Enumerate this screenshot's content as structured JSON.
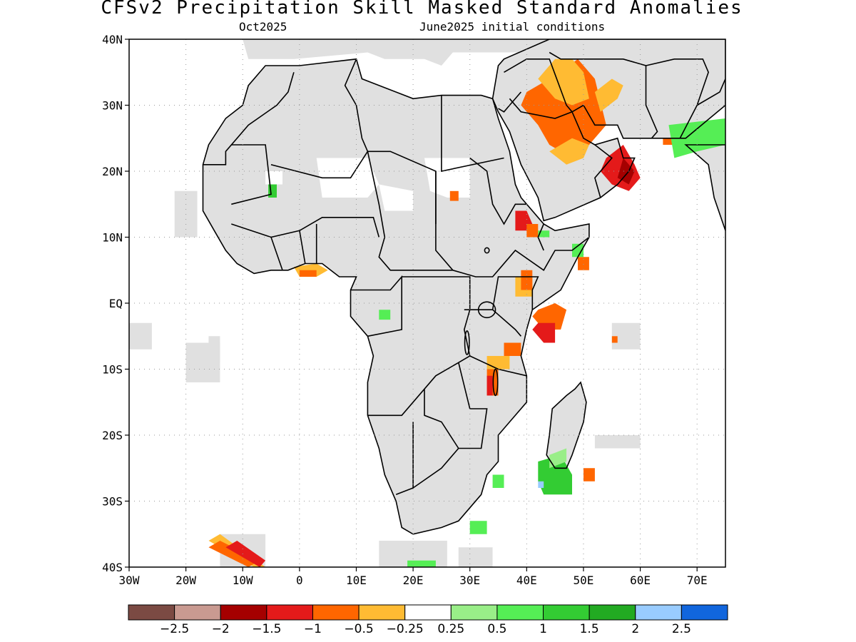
{
  "title": "CFSv2 Precipitation Skill Masked Standard Anomalies",
  "subtitle_left": "Oct2025",
  "subtitle_right": "June2025 initial conditions",
  "map": {
    "lon_range": [
      -30,
      75
    ],
    "lat_range": [
      -40,
      40
    ],
    "land_color": "#e0e0e0",
    "border_color": "#000000",
    "grid_style": "dotted",
    "lat_labels": [
      {
        "lat": 40,
        "text": "40N"
      },
      {
        "lat": 30,
        "text": "30N"
      },
      {
        "lat": 20,
        "text": "20N"
      },
      {
        "lat": 10,
        "text": "10N"
      },
      {
        "lat": 0,
        "text": "EQ"
      },
      {
        "lat": -10,
        "text": "10S"
      },
      {
        "lat": -20,
        "text": "20S"
      },
      {
        "lat": -30,
        "text": "30S"
      },
      {
        "lat": -40,
        "text": "40S"
      }
    ],
    "lon_labels": [
      {
        "lon": -30,
        "text": "30W"
      },
      {
        "lon": -20,
        "text": "20W"
      },
      {
        "lon": -10,
        "text": "10W"
      },
      {
        "lon": 0,
        "text": "0"
      },
      {
        "lon": 10,
        "text": "10E"
      },
      {
        "lon": 20,
        "text": "20E"
      },
      {
        "lon": 30,
        "text": "30E"
      },
      {
        "lon": 40,
        "text": "40E"
      },
      {
        "lon": 50,
        "text": "50E"
      },
      {
        "lon": 60,
        "text": "60E"
      },
      {
        "lon": 70,
        "text": "70E"
      }
    ],
    "anomaly_regions": [
      {
        "name": "arabia-north",
        "color": "#ff6600",
        "coords": [
          [
            40,
            32
          ],
          [
            46,
            35
          ],
          [
            49,
            37
          ],
          [
            52,
            34
          ],
          [
            54,
            27
          ],
          [
            51,
            24
          ],
          [
            48,
            22
          ],
          [
            44,
            24
          ],
          [
            42,
            27
          ],
          [
            39,
            30
          ]
        ]
      },
      {
        "name": "arabia-north-light",
        "color": "#ffbb33",
        "coords": [
          [
            42,
            34
          ],
          [
            45,
            37
          ],
          [
            48,
            37
          ],
          [
            50,
            35
          ],
          [
            51,
            31
          ],
          [
            48,
            30
          ],
          [
            45,
            31
          ]
        ]
      },
      {
        "name": "arabia-south-light",
        "color": "#ffbb33",
        "coords": [
          [
            44,
            23
          ],
          [
            47,
            21
          ],
          [
            50,
            22
          ],
          [
            51,
            24
          ],
          [
            48,
            25
          ]
        ]
      },
      {
        "name": "oman",
        "color": "#e41a1a",
        "coords": [
          [
            54,
            22
          ],
          [
            57,
            24
          ],
          [
            59,
            21
          ],
          [
            60,
            19
          ],
          [
            58,
            17
          ],
          [
            55,
            18
          ],
          [
            53,
            20
          ]
        ]
      },
      {
        "name": "oman-core",
        "color": "#a50000",
        "coords": [
          [
            57,
            22
          ],
          [
            59,
            20
          ],
          [
            58,
            18
          ],
          [
            56,
            19
          ]
        ]
      },
      {
        "name": "iran-light",
        "color": "#ffbb33",
        "coords": [
          [
            53,
            29
          ],
          [
            56,
            31
          ],
          [
            57,
            33
          ],
          [
            55,
            34
          ],
          [
            52,
            32
          ]
        ]
      },
      {
        "name": "ethiopia-red",
        "color": "#e41a1a",
        "coords": [
          [
            38,
            14
          ],
          [
            40,
            14
          ],
          [
            41,
            12
          ],
          [
            40,
            11
          ],
          [
            38,
            11
          ]
        ]
      },
      {
        "name": "ethiopia-orange",
        "color": "#ff6600",
        "coords": [
          [
            40,
            12
          ],
          [
            42,
            12
          ],
          [
            42,
            10
          ],
          [
            40,
            10
          ]
        ]
      },
      {
        "name": "kenya-light",
        "color": "#ffbb33",
        "coords": [
          [
            38,
            4
          ],
          [
            41,
            4
          ],
          [
            41,
            1
          ],
          [
            38,
            1
          ]
        ]
      },
      {
        "name": "kenya-orange",
        "color": "#ff6600",
        "coords": [
          [
            39,
            5
          ],
          [
            41,
            5
          ],
          [
            41,
            2
          ],
          [
            39,
            2
          ]
        ]
      },
      {
        "name": "somalia-orange",
        "color": "#ff6600",
        "coords": [
          [
            42,
            -1
          ],
          [
            45,
            0
          ],
          [
            47,
            -1
          ],
          [
            46,
            -4
          ],
          [
            43,
            -4
          ],
          [
            41,
            -2
          ]
        ]
      },
      {
        "name": "somalia-red",
        "color": "#e41a1a",
        "coords": [
          [
            42,
            -3
          ],
          [
            45,
            -3
          ],
          [
            45,
            -6
          ],
          [
            43,
            -6
          ],
          [
            41,
            -4
          ]
        ]
      },
      {
        "name": "somalia-east",
        "color": "#ff6600",
        "coords": [
          [
            49,
            7
          ],
          [
            51,
            7
          ],
          [
            51,
            5
          ],
          [
            49,
            5
          ]
        ]
      },
      {
        "name": "tanzania-orange",
        "color": "#ff6600",
        "coords": [
          [
            36,
            -6
          ],
          [
            39,
            -6
          ],
          [
            39,
            -8
          ],
          [
            36,
            -8
          ]
        ]
      },
      {
        "name": "tanzania-light",
        "color": "#ffbb33",
        "coords": [
          [
            33,
            -8
          ],
          [
            37,
            -8
          ],
          [
            37,
            -10
          ],
          [
            33,
            -10
          ]
        ]
      },
      {
        "name": "malawi-orange",
        "color": "#ff6600",
        "coords": [
          [
            33,
            -10
          ],
          [
            35,
            -10
          ],
          [
            35,
            -14
          ],
          [
            33,
            -14
          ]
        ]
      },
      {
        "name": "malawi-red",
        "color": "#e41a1a",
        "coords": [
          [
            33,
            -11
          ],
          [
            34,
            -11
          ],
          [
            34,
            -14
          ],
          [
            33,
            -14
          ]
        ]
      },
      {
        "name": "chad-orange",
        "color": "#ff6600",
        "coords": [
          [
            26.5,
            17
          ],
          [
            28,
            17
          ],
          [
            28,
            15.5
          ],
          [
            26.5,
            15.5
          ]
        ]
      },
      {
        "name": "gulf-guinea-light",
        "color": "#ffbb33",
        "coords": [
          [
            -1,
            5.5
          ],
          [
            3,
            6
          ],
          [
            5,
            5
          ],
          [
            3,
            4
          ],
          [
            0,
            4
          ]
        ]
      },
      {
        "name": "gulf-guinea-orange",
        "color": "#ff6600",
        "coords": [
          [
            0,
            5
          ],
          [
            3,
            5
          ],
          [
            3,
            4
          ],
          [
            0,
            4
          ]
        ]
      },
      {
        "name": "southatlantic-light",
        "color": "#ffbb33",
        "coords": [
          [
            -16,
            -36
          ],
          [
            -8,
            -40
          ],
          [
            -6,
            -40
          ],
          [
            -14,
            -35
          ]
        ]
      },
      {
        "name": "southatlantic-orange",
        "color": "#ff6600",
        "coords": [
          [
            -16,
            -37
          ],
          [
            -9,
            -40
          ],
          [
            -7,
            -39
          ],
          [
            -14,
            -36
          ]
        ]
      },
      {
        "name": "southatlantic-red",
        "color": "#e41a1a",
        "coords": [
          [
            -13,
            -37
          ],
          [
            -7,
            -40
          ],
          [
            -6,
            -39
          ],
          [
            -11,
            -36
          ]
        ]
      },
      {
        "name": "madagascar-orange",
        "color": "#ff6600",
        "coords": [
          [
            50,
            -25
          ],
          [
            52,
            -25
          ],
          [
            52,
            -27
          ],
          [
            50,
            -27
          ]
        ]
      },
      {
        "name": "indian-ocean-orange",
        "color": "#ff6600",
        "coords": [
          [
            55,
            -5
          ],
          [
            56,
            -5
          ],
          [
            56,
            -6
          ],
          [
            55,
            -6
          ]
        ]
      },
      {
        "name": "iran-pakistan-orange",
        "color": "#ff6600",
        "coords": [
          [
            64,
            25
          ],
          [
            67,
            25
          ],
          [
            67,
            24
          ],
          [
            64,
            24
          ]
        ]
      },
      {
        "name": "madagascar-green",
        "color": "#33cc33",
        "coords": [
          [
            42,
            -24
          ],
          [
            46,
            -23
          ],
          [
            48,
            -26
          ],
          [
            48,
            -29
          ],
          [
            43,
            -29
          ],
          [
            42,
            -27
          ]
        ]
      },
      {
        "name": "madagascar-lightgreen",
        "color": "#99ee88",
        "coords": [
          [
            44,
            -23
          ],
          [
            47,
            -22
          ],
          [
            47,
            -24
          ],
          [
            44,
            -25
          ]
        ]
      },
      {
        "name": "madagascar-blue",
        "color": "#99ccff",
        "coords": [
          [
            42,
            -27
          ],
          [
            43,
            -27
          ],
          [
            43,
            -28
          ],
          [
            42,
            -28
          ]
        ]
      },
      {
        "name": "mozambique-green",
        "color": "#55ee55",
        "coords": [
          [
            34,
            -26
          ],
          [
            36,
            -26
          ],
          [
            36,
            -28
          ],
          [
            34,
            -28
          ]
        ]
      },
      {
        "name": "southafrica-green",
        "color": "#55ee55",
        "coords": [
          [
            30,
            -33
          ],
          [
            33,
            -33
          ],
          [
            33,
            -35
          ],
          [
            30,
            -35
          ]
        ]
      },
      {
        "name": "cape-green",
        "color": "#55ee55",
        "coords": [
          [
            19,
            -40
          ],
          [
            24,
            -40
          ],
          [
            24,
            -39
          ],
          [
            19,
            -39
          ]
        ]
      },
      {
        "name": "india-green",
        "color": "#55ee55",
        "coords": [
          [
            65,
            27
          ],
          [
            75,
            28
          ],
          [
            75,
            24
          ],
          [
            70,
            23
          ],
          [
            66,
            22
          ]
        ]
      },
      {
        "name": "ethiopia-green",
        "color": "#55ee55",
        "coords": [
          [
            42,
            11
          ],
          [
            44,
            11
          ],
          [
            44,
            10
          ],
          [
            42,
            10
          ]
        ]
      },
      {
        "name": "somalia-green",
        "color": "#55ee55",
        "coords": [
          [
            48,
            9
          ],
          [
            50,
            9
          ],
          [
            50,
            7
          ],
          [
            48,
            7
          ]
        ]
      },
      {
        "name": "mali-green",
        "color": "#33cc33",
        "coords": [
          [
            -5.5,
            18
          ],
          [
            -4,
            18
          ],
          [
            -4,
            16
          ],
          [
            -5.5,
            16
          ]
        ]
      },
      {
        "name": "congo-green",
        "color": "#55ee55",
        "coords": [
          [
            14,
            -1
          ],
          [
            16,
            -1
          ],
          [
            16,
            -2.5
          ],
          [
            14,
            -2.5
          ]
        ]
      }
    ]
  },
  "colorbar": {
    "colors": [
      "#7b4a43",
      "#c99a91",
      "#a50000",
      "#e41a1a",
      "#ff6600",
      "#ffbb33",
      "#ffffff",
      "#99ee88",
      "#55ee55",
      "#33cc33",
      "#22aa22",
      "#99ccff",
      "#1166dd"
    ],
    "labels": [
      "-2.5",
      "-2",
      "-1.5",
      "-1",
      "-0.5",
      "-0.25",
      "0.25",
      "0.5",
      "1",
      "1.5",
      "2",
      "2.5"
    ]
  }
}
